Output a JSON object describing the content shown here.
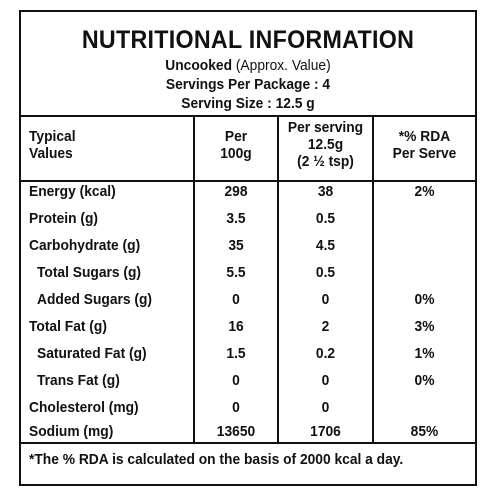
{
  "header": {
    "title": "NUTRITIONAL INFORMATION",
    "uncooked_bold": "Uncooked",
    "uncooked_note": "(Approx. Value)",
    "servings": "Servings Per Package : 4",
    "serving_size": "Serving Size : 12.5 g"
  },
  "columns": {
    "typical": [
      "Typical",
      "Values"
    ],
    "per100": [
      "Per",
      "100g"
    ],
    "perserving": [
      "Per serving",
      "12.5g",
      "(2 ½ tsp)"
    ],
    "rda": [
      "*% RDA",
      "Per Serve"
    ]
  },
  "rows": [
    {
      "label": "Energy (kcal)",
      "per100": "298",
      "serving": "38",
      "rda": "2%"
    },
    {
      "label": "Protein (g)",
      "per100": "3.5",
      "serving": "0.5",
      "rda": ""
    },
    {
      "label": "Carbohydrate (g)",
      "per100": "35",
      "serving": "4.5",
      "rda": ""
    },
    {
      "label": "Total Sugars (g)",
      "per100": "5.5",
      "serving": "0.5",
      "rda": ""
    },
    {
      "label": "Added Sugars (g)",
      "per100": "0",
      "serving": "0",
      "rda": "0%"
    },
    {
      "label": "Total Fat (g)",
      "per100": "16",
      "serving": "2",
      "rda": "3%"
    },
    {
      "label": "Saturated Fat (g)",
      "per100": "1.5",
      "serving": "0.2",
      "rda": "1%"
    },
    {
      "label": "Trans Fat (g)",
      "per100": "0",
      "serving": "0",
      "rda": "0%"
    },
    {
      "label": "Cholesterol (mg)",
      "per100": "0",
      "serving": "0",
      "rda": ""
    },
    {
      "label": "Sodium (mg)",
      "per100": "13650",
      "serving": "1706",
      "rda": "85%"
    }
  ],
  "footnote": "*The % RDA is calculated on the basis of 2000 kcal a day."
}
